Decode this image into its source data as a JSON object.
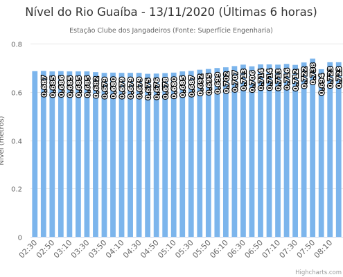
{
  "chart_data": {
    "type": "bar",
    "title": "Nível do Rio Guaíba - 13/11/2020 (Últimas 6 horas)",
    "subtitle": "Estação Clube dos Jangadeiros (Fonte: Superfície Engenharia)",
    "ylabel": "Nível (metros)",
    "xlabel": "",
    "ylim": [
      0,
      0.8
    ],
    "yticks": [
      "0",
      "0.2",
      "0.4",
      "0.6",
      "0.8"
    ],
    "grid": true,
    "color": "#7cb5ec",
    "x": [
      "02:30",
      "02:40",
      "02:50",
      "03:00",
      "03:10",
      "03:20",
      "03:30",
      "03:40",
      "03:50",
      "04:00",
      "04:10",
      "04:20",
      "04:30",
      "04:40",
      "04:50",
      "05:00",
      "05:10",
      "05:20",
      "05:30",
      "05:40",
      "05:50",
      "06:00",
      "06:10",
      "06:20",
      "06:30",
      "06:40",
      "06:50",
      "07:00",
      "07:10",
      "07:20",
      "07:30",
      "07:40",
      "07:50",
      "08:00",
      "08:10",
      "08:20"
    ],
    "xtick_labels": [
      "02:30",
      "02:50",
      "03:10",
      "03:30",
      "03:50",
      "04:10",
      "04:30",
      "04:50",
      "05:10",
      "05:30",
      "05:50",
      "06:10",
      "06:30",
      "06:50",
      "07:10",
      "07:30",
      "07:50",
      "08:10"
    ],
    "values": [
      0.686,
      0.687,
      0.685,
      0.686,
      0.685,
      0.685,
      0.685,
      0.682,
      0.679,
      0.68,
      0.679,
      0.679,
      0.679,
      0.675,
      0.676,
      0.678,
      0.68,
      0.685,
      0.687,
      0.692,
      0.695,
      0.699,
      0.702,
      0.707,
      0.713,
      0.706,
      0.714,
      0.714,
      0.713,
      0.716,
      0.712,
      0.722,
      0.738,
      0.694,
      0.723,
      0.723
    ],
    "data_labels": [
      "",
      "0.687",
      "0.685",
      "0.686",
      "0.685",
      "0.685",
      "0.685",
      "0.682",
      "0.679",
      "0.680",
      "0.679",
      "0.679",
      "0.679",
      "0.675",
      "0.676",
      "0.678",
      "0.680",
      "0.685",
      "0.687",
      "0.692",
      "0.695",
      "0.699",
      "0.702",
      "0.707",
      "0.713",
      "0.706",
      "0.714",
      "0.714",
      "0.713",
      "0.716",
      "0.712",
      "0.722",
      "0.738",
      "0.694",
      "0.723",
      "0.723"
    ]
  },
  "credits": "Highcharts.com"
}
